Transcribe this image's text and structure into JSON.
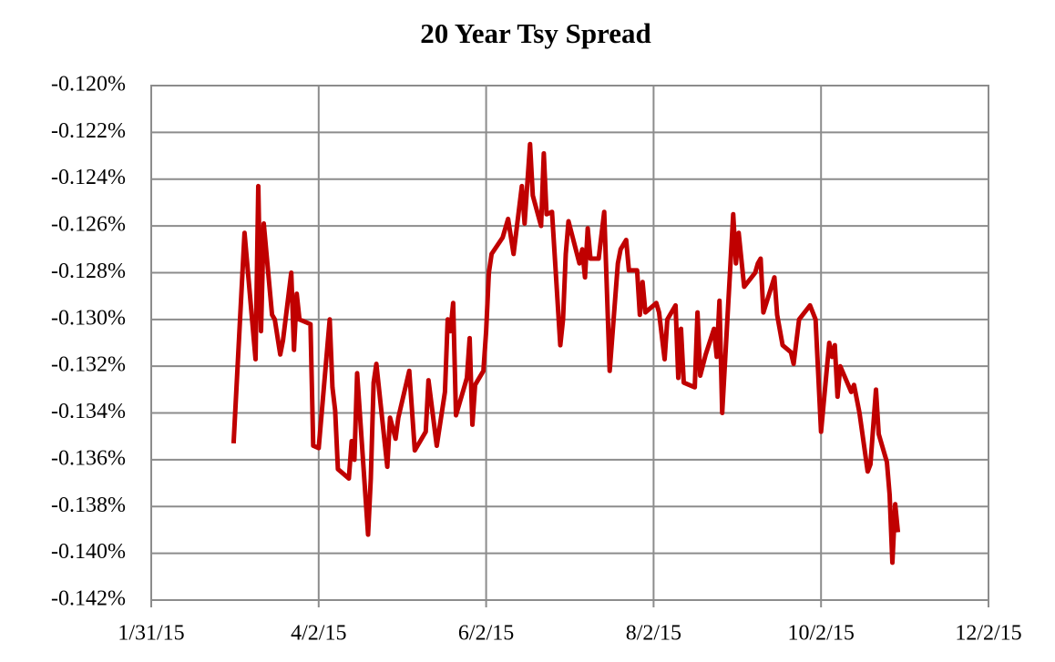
{
  "chart_data": {
    "type": "line",
    "title": "20 Year Tsy Spread",
    "xlim": [
      "1/31/15",
      "12/2/15"
    ],
    "xticks": [
      "1/31/15",
      "4/2/15",
      "6/2/15",
      "8/2/15",
      "10/2/15",
      "12/2/15"
    ],
    "ylim": [
      -0.142,
      -0.12
    ],
    "yticks": [
      {
        "value": -0.142,
        "label": "-0.142%"
      },
      {
        "value": -0.14,
        "label": "-0.140%"
      },
      {
        "value": -0.138,
        "label": "-0.138%"
      },
      {
        "value": -0.136,
        "label": "-0.136%"
      },
      {
        "value": -0.134,
        "label": "-0.134%"
      },
      {
        "value": -0.132,
        "label": "-0.132%"
      },
      {
        "value": -0.13,
        "label": "-0.130%"
      },
      {
        "value": -0.128,
        "label": "-0.128%"
      },
      {
        "value": -0.126,
        "label": "-0.126%"
      },
      {
        "value": -0.124,
        "label": "-0.124%"
      },
      {
        "value": -0.122,
        "label": "-0.122%"
      },
      {
        "value": -0.12,
        "label": "-0.120%"
      }
    ],
    "grid": true,
    "color": "#c00000",
    "x": [
      "3/2/15",
      "3/6/15",
      "3/10/15",
      "3/11/15",
      "3/12/15",
      "3/13/15",
      "3/16/15",
      "3/17/15",
      "3/19/15",
      "3/20/15",
      "3/23/15",
      "3/24/15",
      "3/25/15",
      "3/26/15",
      "3/30/15",
      "3/31/15",
      "4/2/15",
      "4/6/15",
      "4/7/15",
      "4/8/15",
      "4/9/15",
      "4/13/15",
      "4/14/15",
      "4/15/15",
      "4/16/15",
      "4/20/15",
      "4/21/15",
      "4/22/15",
      "4/23/15",
      "4/27/15",
      "4/28/15",
      "4/30/15",
      "5/1/15",
      "5/4/15",
      "5/5/15",
      "5/7/15",
      "5/11/15",
      "5/12/15",
      "5/15/15",
      "5/18/15",
      "5/19/15",
      "5/20/15",
      "5/21/15",
      "5/22/15",
      "5/26/15",
      "5/27/15",
      "5/28/15",
      "5/29/15",
      "6/1/15",
      "6/2/15",
      "6/3/15",
      "6/4/15",
      "6/8/15",
      "6/10/15",
      "6/12/15",
      "6/15/15",
      "6/16/15",
      "6/18/15",
      "6/19/15",
      "6/22/15",
      "6/23/15",
      "6/24/15",
      "6/26/15",
      "6/29/15",
      "6/30/15",
      "7/1/15",
      "7/2/15",
      "7/6/15",
      "7/7/15",
      "7/8/15",
      "7/9/15",
      "7/10/15",
      "7/13/15",
      "7/15/15",
      "7/17/15",
      "7/20/15",
      "7/21/15",
      "7/23/15",
      "7/24/15",
      "7/27/15",
      "7/28/15",
      "7/29/15",
      "7/30/15",
      "8/3/15",
      "8/4/15",
      "8/6/15",
      "8/7/15",
      "8/10/15",
      "8/11/15",
      "8/12/15",
      "8/13/15",
      "8/17/15",
      "8/18/15",
      "8/19/15",
      "8/21/15",
      "8/24/15",
      "8/25/15",
      "8/26/15",
      "8/27/15",
      "8/31/15",
      "9/1/15",
      "9/2/15",
      "9/4/15",
      "9/8/15",
      "9/9/15",
      "9/10/15",
      "9/11/15",
      "9/15/15",
      "9/16/15",
      "9/18/15",
      "9/21/15",
      "9/22/15",
      "9/24/15",
      "9/28/15",
      "9/30/15",
      "10/2/15",
      "10/5/15",
      "10/6/15",
      "10/7/15",
      "10/8/15",
      "10/9/15",
      "10/13/15",
      "10/14/15",
      "10/16/15",
      "10/19/15",
      "10/20/15",
      "10/22/15",
      "10/23/15",
      "10/26/15",
      "10/27/15",
      "10/28/15",
      "10/29/15",
      "10/30/15"
    ],
    "values": [
      -0.1353,
      -0.1263,
      -0.1317,
      -0.1243,
      -0.1305,
      -0.1259,
      -0.1298,
      -0.13,
      -0.1315,
      -0.1309,
      -0.128,
      -0.1313,
      -0.1289,
      -0.13,
      -0.1302,
      -0.1354,
      -0.1355,
      -0.13,
      -0.1329,
      -0.1339,
      -0.1364,
      -0.1368,
      -0.1352,
      -0.136,
      -0.1323,
      -0.1392,
      -0.1368,
      -0.1327,
      -0.1319,
      -0.1363,
      -0.1342,
      -0.1351,
      -0.1342,
      -0.1327,
      -0.1322,
      -0.1356,
      -0.1348,
      -0.1326,
      -0.1354,
      -0.1331,
      -0.13,
      -0.1305,
      -0.1293,
      -0.1341,
      -0.1325,
      -0.1308,
      -0.1345,
      -0.1328,
      -0.1322,
      -0.1305,
      -0.128,
      -0.1272,
      -0.1265,
      -0.1257,
      -0.1272,
      -0.1243,
      -0.1259,
      -0.1225,
      -0.1247,
      -0.126,
      -0.1229,
      -0.1255,
      -0.1254,
      -0.1311,
      -0.13,
      -0.1272,
      -0.1258,
      -0.1276,
      -0.127,
      -0.1282,
      -0.1261,
      -0.1274,
      -0.1274,
      -0.1254,
      -0.1322,
      -0.1276,
      -0.127,
      -0.1266,
      -0.1279,
      -0.1279,
      -0.1298,
      -0.1284,
      -0.1297,
      -0.1293,
      -0.1297,
      -0.1317,
      -0.13,
      -0.1294,
      -0.1325,
      -0.1304,
      -0.1327,
      -0.1329,
      -0.1297,
      -0.1324,
      -0.1315,
      -0.1304,
      -0.1316,
      -0.1292,
      -0.134,
      -0.1255,
      -0.1276,
      -0.1263,
      -0.1286,
      -0.128,
      -0.1276,
      -0.1274,
      -0.1297,
      -0.1282,
      -0.1298,
      -0.1311,
      -0.1314,
      -0.1319,
      -0.13,
      -0.1294,
      -0.13,
      -0.1348,
      -0.131,
      -0.1316,
      -0.1311,
      -0.1333,
      -0.132,
      -0.1331,
      -0.1328,
      -0.134,
      -0.1365,
      -0.1362,
      -0.133,
      -0.1349,
      -0.1361,
      -0.1375,
      -0.1404,
      -0.1379,
      -0.1391
    ]
  }
}
